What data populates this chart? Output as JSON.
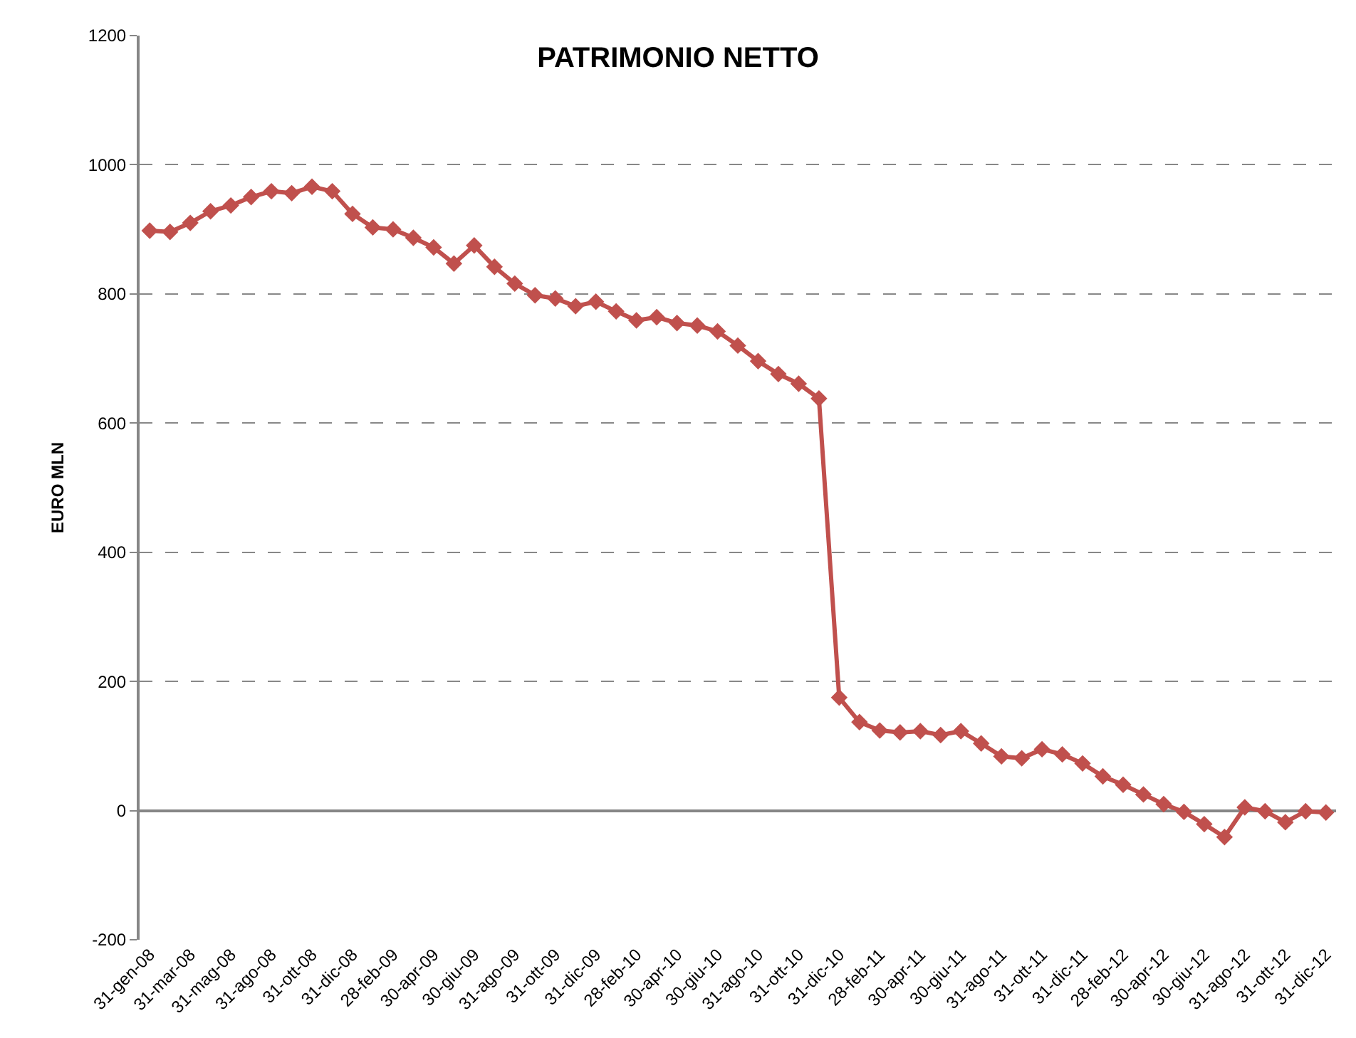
{
  "chart_data": {
    "type": "line",
    "title": "PATRIMONIO NETTO",
    "ylabel": "EURO MLN",
    "categories": [
      "31-gen-08",
      null,
      "31-mar-08",
      null,
      "31-mag-08",
      null,
      "31-ago-08",
      null,
      "31-ott-08",
      null,
      "31-dic-08",
      null,
      "28-feb-09",
      null,
      "30-apr-09",
      null,
      "30-giu-09",
      null,
      "31-ago-09",
      null,
      "31-ott-09",
      null,
      "31-dic-09",
      null,
      "28-feb-10",
      null,
      "30-apr-10",
      null,
      "30-giu-10",
      null,
      "31-ago-10",
      null,
      "31-ott-10",
      null,
      "31-dic-10",
      null,
      "28-feb-11",
      null,
      "30-apr-11",
      null,
      "30-giu-11",
      null,
      "31-ago-11",
      null,
      "31-ott-11",
      null,
      "31-dic-11",
      null,
      "28-feb-12",
      null,
      "30-apr-12",
      null,
      "30-giu-12",
      null,
      "31-ago-12",
      null,
      "31-ott-12",
      null,
      "31-dic-12"
    ],
    "series": [
      {
        "color": "#c0504d",
        "values": [
          898,
          896,
          910,
          928,
          937,
          950,
          959,
          956,
          966,
          959,
          924,
          903,
          900,
          887,
          872,
          847,
          875,
          842,
          816,
          798,
          793,
          781,
          788,
          773,
          759,
          764,
          755,
          751,
          742,
          720,
          696,
          676,
          661,
          638,
          175,
          137,
          124,
          121,
          123,
          117,
          123,
          104,
          84,
          81,
          95,
          87,
          73,
          53,
          40,
          25,
          10,
          -2,
          -21,
          -41,
          5,
          -1,
          -18,
          -1,
          -3
        ]
      }
    ],
    "ylim": [
      -200,
      1200
    ],
    "yticks": [
      -200,
      0,
      200,
      400,
      600,
      800,
      1000,
      1200
    ],
    "grid": "y",
    "marker": "diamond",
    "line_style": "solid"
  }
}
